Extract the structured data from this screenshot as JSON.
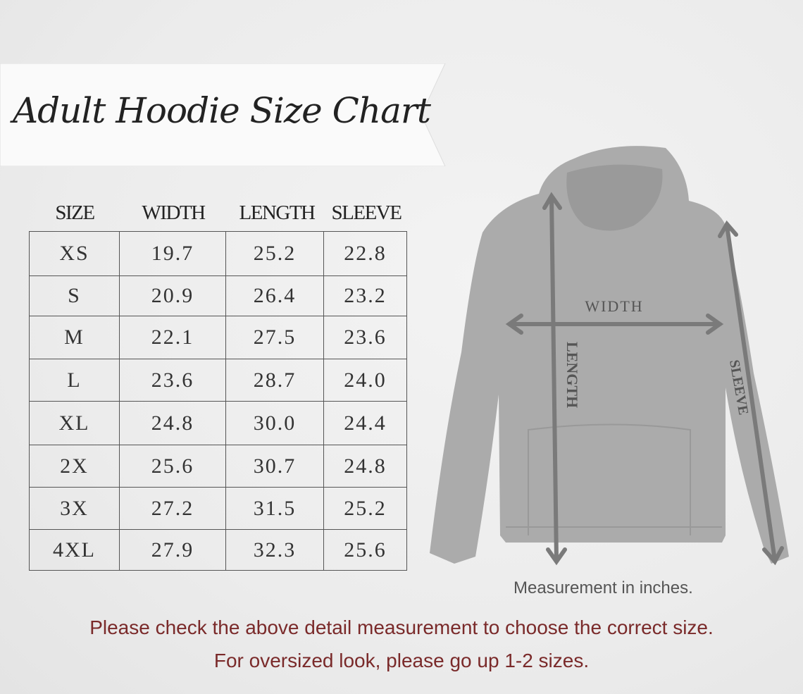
{
  "title": "Adult Hoodie Size Chart",
  "table": {
    "headers": [
      "SIZE",
      "WIDTH",
      "LENGTH",
      "SLEEVE"
    ],
    "rows": [
      [
        "XS",
        "19.7",
        "25.2",
        "22.8"
      ],
      [
        "S",
        "20.9",
        "26.4",
        "23.2"
      ],
      [
        "M",
        "22.1",
        "27.5",
        "23.6"
      ],
      [
        "L",
        "23.6",
        "28.7",
        "24.0"
      ],
      [
        "XL",
        "24.8",
        "30.0",
        "24.4"
      ],
      [
        "2X",
        "25.6",
        "30.7",
        "24.8"
      ],
      [
        "3X",
        "27.2",
        "31.5",
        "25.2"
      ],
      [
        "4XL",
        "27.9",
        "32.3",
        "25.6"
      ]
    ]
  },
  "diagram": {
    "width_label": "WIDTH",
    "length_label": "LENGTH",
    "sleeve_label": "SLEEVE",
    "garment_color": "#ababab",
    "arrow_color": "#7a7a7a"
  },
  "note": "Measurement in inches.",
  "footer": {
    "line1": "Please check the above detail measurement to choose the correct size.",
    "line2": "For oversized look,  please go up 1-2 sizes."
  }
}
